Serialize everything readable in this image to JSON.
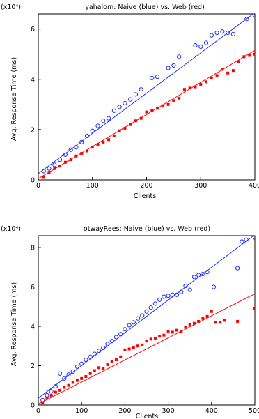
{
  "figure": {
    "background": "#ffffff",
    "naive_color": "#1f2dff",
    "web_color": "#ff0000"
  },
  "chart_data": [
    {
      "type": "scatter",
      "title": "yahalom: Naive (blue) vs. Web (red)",
      "xlabel": "Clients",
      "ylabel": "Avg. Response Time (ms)",
      "y_scale_note": "(x10⁴)",
      "xlim": [
        0,
        400
      ],
      "ylim": [
        0,
        6.6
      ],
      "y_display_multiplier": 10000,
      "grid": false,
      "legend": "none",
      "x_ticks": [
        {
          "value": 0,
          "label": "0"
        },
        {
          "value": 100,
          "label": "100"
        },
        {
          "value": 200,
          "label": "200"
        },
        {
          "value": 300,
          "label": "300"
        },
        {
          "value": 400,
          "label": "400"
        }
      ],
      "y_ticks": [
        {
          "value": 0,
          "label": "0"
        },
        {
          "value": 2,
          "label": "2"
        },
        {
          "value": 4,
          "label": "4"
        },
        {
          "value": 6,
          "label": "6"
        }
      ],
      "series": [
        {
          "color": "#1f2dff",
          "marker": "circle",
          "points": [
            [
              10,
              0.35
            ],
            [
              20,
              0.45
            ],
            [
              30,
              0.6
            ],
            [
              40,
              0.8
            ],
            [
              50,
              1.0
            ],
            [
              60,
              1.2
            ],
            [
              70,
              1.3
            ],
            [
              80,
              1.5
            ],
            [
              90,
              1.75
            ],
            [
              100,
              1.95
            ],
            [
              110,
              2.15
            ],
            [
              120,
              2.35
            ],
            [
              130,
              2.45
            ],
            [
              140,
              2.75
            ],
            [
              150,
              2.9
            ],
            [
              160,
              3.05
            ],
            [
              170,
              3.2
            ],
            [
              180,
              3.4
            ],
            [
              190,
              3.6
            ],
            [
              210,
              4.05
            ],
            [
              220,
              4.1
            ],
            [
              240,
              4.45
            ],
            [
              250,
              4.55
            ],
            [
              260,
              4.9
            ],
            [
              290,
              5.35
            ],
            [
              300,
              5.3
            ],
            [
              310,
              5.45
            ],
            [
              320,
              5.75
            ],
            [
              330,
              5.85
            ],
            [
              340,
              5.9
            ],
            [
              350,
              5.85
            ],
            [
              360,
              5.8
            ],
            [
              385,
              6.4
            ],
            [
              400,
              6.55
            ],
            [
              405,
              6.5
            ]
          ],
          "fit": [
            [
              0,
              0.25
            ],
            [
              400,
              6.65
            ]
          ]
        },
        {
          "color": "#ff0000",
          "marker": "square",
          "points": [
            [
              10,
              0.1
            ],
            [
              20,
              0.3
            ],
            [
              30,
              0.45
            ],
            [
              40,
              0.55
            ],
            [
              50,
              0.7
            ],
            [
              60,
              0.8
            ],
            [
              70,
              0.95
            ],
            [
              80,
              1.05
            ],
            [
              90,
              1.15
            ],
            [
              100,
              1.3
            ],
            [
              110,
              1.4
            ],
            [
              120,
              1.5
            ],
            [
              130,
              1.6
            ],
            [
              140,
              1.75
            ],
            [
              150,
              1.95
            ],
            [
              160,
              2.05
            ],
            [
              170,
              2.2
            ],
            [
              180,
              2.35
            ],
            [
              190,
              2.45
            ],
            [
              200,
              2.7
            ],
            [
              210,
              2.75
            ],
            [
              220,
              2.85
            ],
            [
              230,
              2.95
            ],
            [
              240,
              3.0
            ],
            [
              250,
              3.15
            ],
            [
              260,
              3.25
            ],
            [
              270,
              3.6
            ],
            [
              280,
              3.65
            ],
            [
              290,
              3.7
            ],
            [
              300,
              3.8
            ],
            [
              310,
              3.9
            ],
            [
              320,
              4.05
            ],
            [
              330,
              4.15
            ],
            [
              340,
              4.4
            ],
            [
              350,
              4.25
            ],
            [
              360,
              4.35
            ],
            [
              370,
              4.7
            ],
            [
              380,
              4.9
            ],
            [
              390,
              4.95
            ],
            [
              400,
              5.0
            ]
          ],
          "fit": [
            [
              0,
              0.05
            ],
            [
              400,
              5.15
            ]
          ]
        }
      ]
    },
    {
      "type": "scatter",
      "title": "otwayRees: Naive (blue) vs. Web (red)",
      "xlabel": "Clients",
      "ylabel": "Avg. Response Time (ms)",
      "y_scale_note": "(x10⁴)",
      "xlim": [
        0,
        500
      ],
      "ylim": [
        0,
        8.6
      ],
      "y_display_multiplier": 10000,
      "grid": false,
      "legend": "none",
      "x_ticks": [
        {
          "value": 0,
          "label": "0"
        },
        {
          "value": 100,
          "label": "100"
        },
        {
          "value": 200,
          "label": "200"
        },
        {
          "value": 300,
          "label": "300"
        },
        {
          "value": 400,
          "label": "400"
        },
        {
          "value": 500,
          "label": "500"
        }
      ],
      "y_ticks": [
        {
          "value": 0,
          "label": "0"
        },
        {
          "value": 2,
          "label": "2"
        },
        {
          "value": 4,
          "label": "4"
        },
        {
          "value": 6,
          "label": "6"
        },
        {
          "value": 8,
          "label": "8"
        }
      ],
      "series": [
        {
          "color": "#1f2dff",
          "marker": "circle",
          "points": [
            [
              10,
              0.25
            ],
            [
              20,
              0.5
            ],
            [
              30,
              0.7
            ],
            [
              40,
              0.95
            ],
            [
              50,
              1.6
            ],
            [
              60,
              1.35
            ],
            [
              70,
              1.55
            ],
            [
              80,
              1.7
            ],
            [
              90,
              1.95
            ],
            [
              100,
              2.1
            ],
            [
              110,
              2.3
            ],
            [
              120,
              2.45
            ],
            [
              130,
              2.6
            ],
            [
              140,
              2.75
            ],
            [
              150,
              2.9
            ],
            [
              160,
              3.1
            ],
            [
              170,
              3.25
            ],
            [
              180,
              3.45
            ],
            [
              190,
              3.6
            ],
            [
              200,
              3.85
            ],
            [
              210,
              4.05
            ],
            [
              220,
              4.2
            ],
            [
              230,
              4.4
            ],
            [
              240,
              4.55
            ],
            [
              250,
              4.75
            ],
            [
              260,
              4.95
            ],
            [
              270,
              5.15
            ],
            [
              280,
              5.35
            ],
            [
              290,
              5.5
            ],
            [
              300,
              5.55
            ],
            [
              310,
              5.6
            ],
            [
              320,
              5.6
            ],
            [
              330,
              5.75
            ],
            [
              340,
              6.05
            ],
            [
              350,
              5.85
            ],
            [
              360,
              6.5
            ],
            [
              370,
              6.6
            ],
            [
              380,
              6.65
            ],
            [
              390,
              6.75
            ],
            [
              405,
              6.0
            ],
            [
              470,
              8.3
            ],
            [
              480,
              8.4
            ],
            [
              500,
              8.5
            ],
            [
              460,
              6.95
            ]
          ],
          "fit": [
            [
              0,
              0.35
            ],
            [
              500,
              8.65
            ]
          ]
        },
        {
          "color": "#ff0000",
          "marker": "square",
          "points": [
            [
              10,
              0.1
            ],
            [
              20,
              0.35
            ],
            [
              30,
              0.5
            ],
            [
              40,
              0.65
            ],
            [
              50,
              0.75
            ],
            [
              60,
              0.9
            ],
            [
              70,
              1.0
            ],
            [
              80,
              1.15
            ],
            [
              90,
              1.25
            ],
            [
              100,
              1.35
            ],
            [
              110,
              1.45
            ],
            [
              120,
              1.6
            ],
            [
              130,
              1.75
            ],
            [
              140,
              1.9
            ],
            [
              150,
              1.85
            ],
            [
              160,
              2.05
            ],
            [
              170,
              2.2
            ],
            [
              180,
              2.3
            ],
            [
              190,
              2.45
            ],
            [
              200,
              2.8
            ],
            [
              210,
              2.85
            ],
            [
              220,
              2.9
            ],
            [
              230,
              3.0
            ],
            [
              240,
              3.05
            ],
            [
              250,
              3.25
            ],
            [
              260,
              3.35
            ],
            [
              270,
              3.4
            ],
            [
              280,
              3.5
            ],
            [
              290,
              3.55
            ],
            [
              300,
              3.75
            ],
            [
              310,
              3.7
            ],
            [
              320,
              3.8
            ],
            [
              330,
              3.75
            ],
            [
              340,
              3.95
            ],
            [
              350,
              4.1
            ],
            [
              360,
              4.15
            ],
            [
              370,
              4.25
            ],
            [
              380,
              4.4
            ],
            [
              390,
              4.5
            ],
            [
              400,
              4.75
            ],
            [
              410,
              4.2
            ],
            [
              420,
              4.2
            ],
            [
              430,
              4.3
            ],
            [
              460,
              4.25
            ],
            [
              500,
              4.9
            ]
          ],
          "fit": [
            [
              0,
              0.05
            ],
            [
              500,
              5.65
            ]
          ]
        }
      ]
    }
  ]
}
